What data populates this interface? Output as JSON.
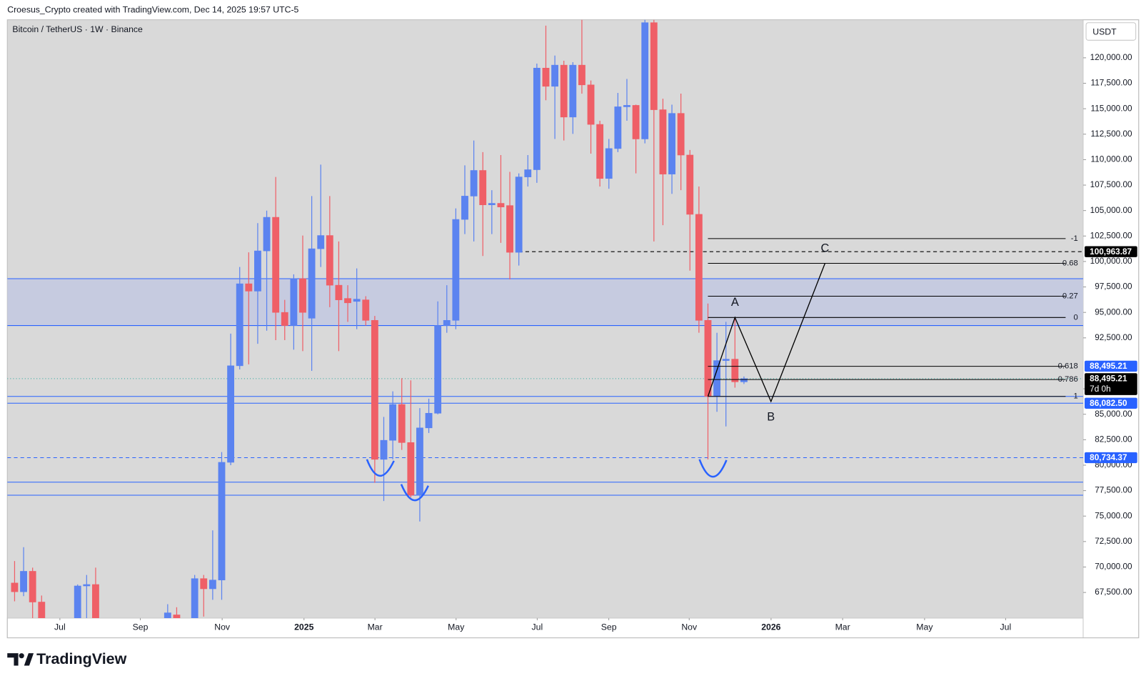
{
  "header": {
    "attribution": "Croesus_Crypto created with TradingView.com, Dec 14, 2025 19:57 UTC-5"
  },
  "footer": {
    "brand": "TradingView"
  },
  "chart_data": {
    "type": "candlestick",
    "title": "Bitcoin / TetherUS · 1W · Binance",
    "currency": "USDT",
    "up_color": "#5b83f0",
    "down_color": "#ef5f67",
    "grid": false,
    "xlim": [
      -0.81,
      118.67
    ],
    "ylim": [
      64985,
      123735
    ],
    "xticks": [
      {
        "value": 5.03,
        "label": "Jul"
      },
      {
        "value": 13.96,
        "label": "Sep"
      },
      {
        "value": 23.05,
        "label": "Nov"
      },
      {
        "value": 32.14,
        "label": "2025"
      },
      {
        "value": 40.02,
        "label": "Mar"
      },
      {
        "value": 49.03,
        "label": "May"
      },
      {
        "value": 58.04,
        "label": "Jul"
      },
      {
        "value": 65.99,
        "label": "Sep"
      },
      {
        "value": 74.92,
        "label": "Nov"
      },
      {
        "value": 84.01,
        "label": "2026"
      },
      {
        "value": 91.96,
        "label": "Mar"
      },
      {
        "value": 101.06,
        "label": "May"
      },
      {
        "value": 110.06,
        "label": "Jul"
      }
    ],
    "yticks": [
      {
        "value": 67500,
        "label": "67,500.00"
      },
      {
        "value": 70000,
        "label": "70,000.00"
      },
      {
        "value": 72500,
        "label": "72,500.00"
      },
      {
        "value": 75000,
        "label": "75,000.00"
      },
      {
        "value": 77500,
        "label": "77,500.00"
      },
      {
        "value": 80000,
        "label": "80,000.00"
      },
      {
        "value": 82500,
        "label": "82,500.00"
      },
      {
        "value": 85000,
        "label": "85,000.00"
      },
      {
        "value": 87500,
        "label": "87,500.00"
      },
      {
        "value": 92500,
        "label": "92,500.00"
      },
      {
        "value": 95000,
        "label": "95,000.00"
      },
      {
        "value": 97500,
        "label": "97,500.00"
      },
      {
        "value": 100000,
        "label": "100,000.00"
      },
      {
        "value": 102500,
        "label": "102,500.00"
      },
      {
        "value": 105000,
        "label": "105,000.00"
      },
      {
        "value": 107500,
        "label": "107,500.00"
      },
      {
        "value": 110000,
        "label": "110,000.00"
      },
      {
        "value": 112500,
        "label": "112,500.00"
      },
      {
        "value": 115000,
        "label": "115,000.00"
      },
      {
        "value": 117500,
        "label": "117,500.00"
      },
      {
        "value": 120000,
        "label": "120,000.00"
      }
    ],
    "x": [
      0,
      1,
      2,
      3,
      7,
      8,
      9,
      17,
      18,
      20,
      21,
      22,
      23,
      24,
      25,
      26,
      27,
      28,
      29,
      30,
      31,
      32,
      33,
      34,
      35,
      36,
      37,
      38,
      39,
      40,
      41,
      42,
      43,
      44,
      45,
      46,
      47,
      48,
      49,
      50,
      51,
      52,
      53,
      54,
      55,
      56,
      57,
      58,
      59,
      60,
      61,
      62,
      63,
      64,
      65,
      66,
      67,
      68,
      69,
      70,
      71,
      72,
      73,
      74,
      75,
      76,
      77,
      78,
      79,
      80,
      81
    ],
    "open": [
      68430,
      67570,
      69580,
      66560,
      64500,
      68140,
      68280,
      64500,
      65300,
      64500,
      68860,
      67860,
      68720,
      80280,
      89760,
      97810,
      97090,
      101040,
      104340,
      95000,
      93710,
      98310,
      94430,
      101250,
      102550,
      97670,
      96370,
      96080,
      96230,
      94220,
      80570,
      82440,
      85960,
      82220,
      77050,
      83660,
      85100,
      93710,
      94220,
      104130,
      106420,
      108940,
      105560,
      105710,
      105490,
      100900,
      108300,
      109010,
      118990,
      117200,
      119280,
      114180,
      119280,
      117340,
      113460,
      108150,
      111090,
      115190,
      115330,
      112030,
      123450,
      114900,
      108580,
      114540,
      110450,
      104630,
      94220,
      86750,
      90270,
      90410,
      88180
    ],
    "high": [
      70590,
      71950,
      69940,
      67200,
      68290,
      69220,
      69940,
      66350,
      66050,
      69220,
      69220,
      73600,
      81290,
      92920,
      99460,
      100900,
      103770,
      104990,
      108300,
      96230,
      98740,
      102550,
      106420,
      109510,
      106420,
      101970,
      97670,
      99320,
      96590,
      94650,
      84740,
      87250,
      88540,
      88330,
      85600,
      86530,
      96080,
      97670,
      105210,
      109440,
      111880,
      110740,
      107000,
      110450,
      108800,
      108650,
      110450,
      119430,
      123160,
      120220,
      119710,
      119570,
      123730,
      117770,
      113820,
      112030,
      116550,
      117920,
      115400,
      123730,
      123730,
      115980,
      115400,
      116480,
      110950,
      107360,
      95870,
      93000,
      94070,
      94360,
      88710
    ],
    "low": [
      66630,
      67140,
      64500,
      64000,
      64000,
      64500,
      64000,
      64000,
      64000,
      64000,
      65130,
      66780,
      66780,
      80000,
      89400,
      89900,
      91920,
      93210,
      92280,
      92280,
      91340,
      91200,
      89260,
      99460,
      95510,
      91200,
      94070,
      93350,
      93710,
      78270,
      76480,
      80570,
      81500,
      76840,
      74470,
      83160,
      85000,
      93000,
      93350,
      102690,
      101970,
      100540,
      102690,
      101830,
      98240,
      99600,
      107360,
      107720,
      115830,
      112030,
      111880,
      112530,
      116480,
      110590,
      107360,
      107140,
      110740,
      113820,
      108650,
      111600,
      101970,
      103560,
      106640,
      107000,
      99100,
      93000,
      80570,
      85240,
      83800,
      87610,
      87970
    ],
    "close": [
      67570,
      69580,
      66560,
      64500,
      68140,
      68280,
      64500,
      65500,
      64800,
      68860,
      67860,
      68720,
      80280,
      89760,
      97810,
      97090,
      101040,
      104340,
      95000,
      93710,
      98310,
      95000,
      101250,
      102550,
      97670,
      96230,
      95940,
      96300,
      94220,
      80570,
      82440,
      85960,
      82220,
      77050,
      83660,
      85100,
      93710,
      94220,
      104130,
      106420,
      108940,
      105560,
      105710,
      105350,
      100900,
      108300,
      109010,
      118990,
      117200,
      119280,
      114180,
      119280,
      117340,
      113460,
      108150,
      111090,
      115190,
      115330,
      112030,
      123450,
      114900,
      108580,
      114540,
      110450,
      104630,
      94220,
      86750,
      90270,
      90410,
      88180,
      88495.21
    ],
    "zones": [
      {
        "from": 93710,
        "to": 98310,
        "fill": "#c6cbe0",
        "color": "#2962ff"
      },
      {
        "from": 77050,
        "to": 78330,
        "fill": "none",
        "color": "#2962ff"
      }
    ],
    "lines": [
      {
        "value": 100963.87,
        "color": "#000000",
        "style": "dashed",
        "from_x": 56
      },
      {
        "value": 88495.21,
        "color": "#26a69a",
        "style": "dotted"
      },
      {
        "value": 86750,
        "color": "#2962ff",
        "style": "solid"
      },
      {
        "value": 86082.5,
        "color": "#2962ff",
        "style": "solid"
      },
      {
        "value": 80734.37,
        "color": "#2962ff",
        "style": "dashed"
      }
    ],
    "price_labels": [
      {
        "value": 100963.87,
        "label": "100,963.87",
        "color": "#000000"
      },
      {
        "value": 88495.21,
        "label": "88,495.21",
        "color": "#2962ff"
      },
      {
        "value": 88495.21,
        "label": "88,495.21",
        "color": "#000000",
        "sublabel": "7d 0h"
      },
      {
        "value": 86082.5,
        "label": "86,082.50",
        "color": "#2962ff"
      },
      {
        "value": 80734.37,
        "label": "80,734.37",
        "color": "#2962ff"
      }
    ],
    "fib": {
      "x": 77,
      "color": "#000000",
      "levels": [
        {
          "value": 102250,
          "label": "-1"
        },
        {
          "value": 99820,
          "label": "-0.68"
        },
        {
          "value": 96590,
          "label": "-0.27"
        },
        {
          "value": 94500,
          "label": "0"
        },
        {
          "value": 89710,
          "label": "0.618"
        },
        {
          "value": 88410,
          "label": "0.786"
        },
        {
          "value": 86750,
          "label": "1"
        }
      ]
    },
    "wave": {
      "color": "#000000",
      "x": [
        77,
        80,
        84,
        90
      ],
      "y": [
        86750,
        94500,
        86250,
        99820
      ],
      "labels": [
        null,
        "A",
        "B",
        "C"
      ]
    }
  }
}
